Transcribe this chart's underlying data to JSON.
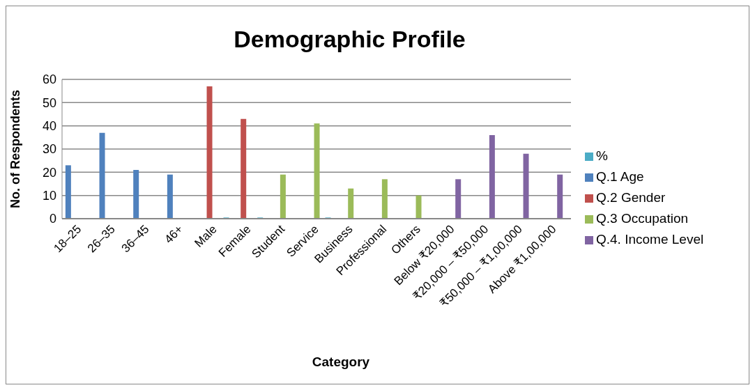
{
  "chart_data": {
    "type": "bar",
    "title": "Demographic Profile",
    "xlabel": "Category",
    "ylabel": "No. of Respondents",
    "categories": [
      "18–25",
      "26–35",
      "36–45",
      "46+",
      "Male",
      "Female",
      "Student",
      "Service",
      "Business",
      "Professional",
      "Others",
      "Below ₹20,000",
      "₹20,000 – ₹50,000",
      "₹50,000 – ₹1,00,000",
      "Above ₹1,00,000"
    ],
    "series": [
      {
        "name": "Q.1 Age",
        "color": "#4f81bd",
        "values": [
          23,
          37,
          21,
          19,
          null,
          null,
          null,
          null,
          null,
          null,
          null,
          null,
          null,
          null,
          null
        ]
      },
      {
        "name": "Q.2 Gender",
        "color": "#c0504d",
        "values": [
          null,
          null,
          null,
          null,
          57,
          43,
          null,
          null,
          null,
          null,
          null,
          null,
          null,
          null,
          null
        ]
      },
      {
        "name": "Q.3 Occupation",
        "color": "#9bbb59",
        "values": [
          null,
          null,
          null,
          null,
          null,
          null,
          19,
          41,
          13,
          17,
          10,
          null,
          null,
          null,
          null
        ]
      },
      {
        "name": "Q.4. Income Level",
        "color": "#8064a2",
        "values": [
          null,
          null,
          null,
          null,
          null,
          null,
          null,
          null,
          null,
          null,
          null,
          17,
          36,
          28,
          19
        ]
      },
      {
        "name": "%",
        "color": "#4bacc6",
        "values": [
          null,
          null,
          null,
          null,
          0.5,
          0.5,
          null,
          0.5,
          null,
          null,
          null,
          null,
          null,
          null,
          null
        ]
      }
    ],
    "ylim": [
      0,
      60
    ],
    "yticks": [
      0,
      10,
      20,
      30,
      40,
      50,
      60
    ],
    "grid": "y",
    "legend": "right"
  }
}
